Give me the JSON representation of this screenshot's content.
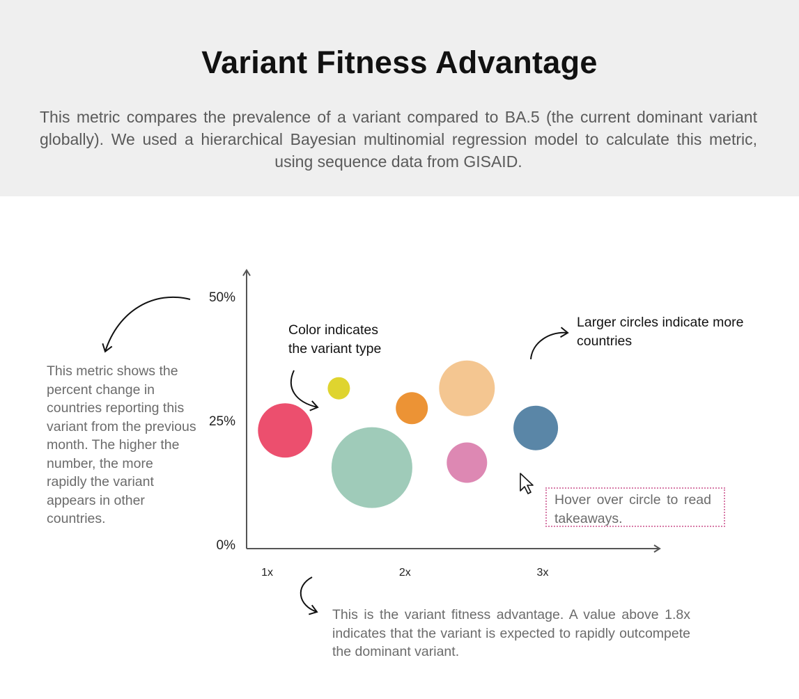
{
  "header": {
    "title": "Variant Fitness Advantage",
    "subtitle": "This metric compares the prevalence of a variant compared to BA.5  (the current dominant variant globally). We used a hierarchical Bayesian multinomial regression model to calculate this metric, using sequence data from GISAID."
  },
  "annotations": {
    "left_note": "This metric shows the percent change in countries reporting this variant from the previous month. The higher the number, the more rapidly the variant appears in other countries.",
    "color_note": "Color indicates the variant type",
    "size_note": "Larger circles indicate more countries",
    "hover_note": "Hover over circle to read takeaways.",
    "bottom_note": "This is the variant fitness advantage. A value above 1.8x indicates that the variant is expected to rapidly outcompete the dominant variant."
  },
  "chart_data": {
    "type": "scatter",
    "x_ticks": [
      "1x",
      "2x",
      "3x"
    ],
    "y_ticks": [
      "0%",
      "25%",
      "50%"
    ],
    "xlim": [
      0.85,
      3.85
    ],
    "ylim": [
      0,
      50
    ],
    "points": [
      {
        "x": 1.13,
        "y": 23.0,
        "size": 39,
        "color": "#ec4f6e"
      },
      {
        "x": 1.52,
        "y": 31.5,
        "size": 16,
        "color": "#dfd42f"
      },
      {
        "x": 1.76,
        "y": 15.5,
        "size": 58,
        "color": "#9fcbb9"
      },
      {
        "x": 2.05,
        "y": 27.5,
        "size": 23,
        "color": "#ec9335"
      },
      {
        "x": 2.45,
        "y": 31.5,
        "size": 40,
        "color": "#f4c691"
      },
      {
        "x": 2.45,
        "y": 16.5,
        "size": 29,
        "color": "#dd88b3"
      },
      {
        "x": 2.95,
        "y": 23.5,
        "size": 32,
        "color": "#5a86a7"
      }
    ]
  }
}
